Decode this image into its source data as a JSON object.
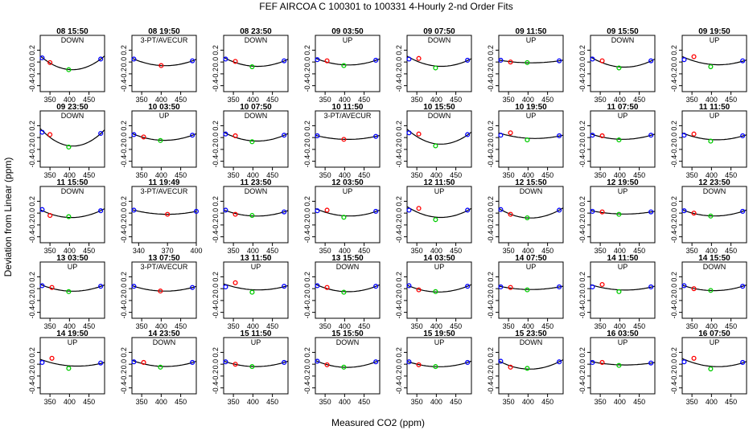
{
  "chart_data": {
    "type": "scatter",
    "title": "FEF   AIRCOA C   100301 to 100331   4-Hourly 2-nd Order Fits",
    "xlabel": "Measured CO2 (ppm)",
    "ylabel": "Deviation from Linear (ppm)",
    "grid_rows": 5,
    "grid_cols": 8,
    "ylim": [
      -0.5,
      0.45
    ],
    "yticks": [
      -0.4,
      -0.2,
      0.0,
      0.2
    ],
    "ytick_labels": [
      "-0.4",
      "-0.2",
      "0.0",
      "0.2"
    ],
    "default_xlim": [
      325,
      490
    ],
    "default_xticks": [
      350,
      400,
      450
    ],
    "default_xtick_labels": [
      "350",
      "400",
      "450"
    ],
    "point_colors": [
      "#0000ff",
      "#ff0000",
      "#00cc00",
      "#0000ff"
    ],
    "line_color": "#000000",
    "panels": [
      {
        "title": "08 15:50",
        "mode": "DOWN",
        "points": [
          {
            "x": 330,
            "y": 0.07
          },
          {
            "x": 350,
            "y": -0.01
          },
          {
            "x": 398,
            "y": -0.13
          },
          {
            "x": 480,
            "y": 0.05
          }
        ],
        "fit": [
          0.2,
          0.0,
          5e-05
        ]
      },
      {
        "title": "08 19:50",
        "mode": "3-PT/AVECUR",
        "points": [
          {
            "x": 330,
            "y": 0.05
          },
          {
            "x": 400,
            "y": -0.06
          },
          {
            "x": 480,
            "y": 0.02
          }
        ],
        "fit": [
          0.2,
          0.0,
          5e-05
        ]
      },
      {
        "title": "08 23:50",
        "mode": "DOWN",
        "points": [
          {
            "x": 330,
            "y": 0.05
          },
          {
            "x": 355,
            "y": 0.01
          },
          {
            "x": 398,
            "y": -0.08
          },
          {
            "x": 480,
            "y": 0.02
          }
        ],
        "fit": [
          0.2,
          0.0,
          5e-05
        ]
      },
      {
        "title": "09 03:50",
        "mode": "UP",
        "points": [
          {
            "x": 330,
            "y": 0.04
          },
          {
            "x": 355,
            "y": 0.02
          },
          {
            "x": 398,
            "y": -0.06
          },
          {
            "x": 480,
            "y": 0.03
          }
        ],
        "fit": [
          0.2,
          0.0,
          5e-05
        ]
      },
      {
        "title": "09 07:50",
        "mode": "DOWN",
        "points": [
          {
            "x": 330,
            "y": 0.05
          },
          {
            "x": 355,
            "y": 0.06
          },
          {
            "x": 398,
            "y": -0.1
          },
          {
            "x": 480,
            "y": 0.03
          }
        ],
        "fit": [
          0.2,
          0.0,
          5e-05
        ]
      },
      {
        "title": "09 11:50",
        "mode": "UP",
        "points": [
          {
            "x": 330,
            "y": 0.03
          },
          {
            "x": 355,
            "y": 0.0
          },
          {
            "x": 398,
            "y": -0.01
          },
          {
            "x": 480,
            "y": 0.02
          }
        ],
        "fit": [
          0.2,
          0.0,
          5e-05
        ]
      },
      {
        "title": "09 15:50",
        "mode": "DOWN",
        "points": [
          {
            "x": 330,
            "y": 0.05
          },
          {
            "x": 355,
            "y": 0.02
          },
          {
            "x": 398,
            "y": -0.1
          },
          {
            "x": 480,
            "y": 0.02
          }
        ],
        "fit": [
          0.2,
          0.0,
          5e-05
        ]
      },
      {
        "title": "09 19:50",
        "mode": "UP",
        "points": [
          {
            "x": 330,
            "y": 0.04
          },
          {
            "x": 355,
            "y": 0.09
          },
          {
            "x": 398,
            "y": -0.08
          },
          {
            "x": 480,
            "y": 0.02
          }
        ],
        "fit": [
          0.2,
          0.0,
          5e-05
        ]
      },
      {
        "title": "09 23:50",
        "mode": "DOWN",
        "points": [
          {
            "x": 330,
            "y": 0.09
          },
          {
            "x": 350,
            "y": 0.05
          },
          {
            "x": 398,
            "y": -0.16
          },
          {
            "x": 480,
            "y": 0.07
          }
        ],
        "fit": [
          0.2,
          0.0,
          5e-05
        ]
      },
      {
        "title": "10 03:50",
        "mode": "UP",
        "points": [
          {
            "x": 330,
            "y": 0.05
          },
          {
            "x": 355,
            "y": 0.01
          },
          {
            "x": 398,
            "y": -0.05
          },
          {
            "x": 480,
            "y": 0.04
          }
        ],
        "fit": [
          0.2,
          0.0,
          5e-05
        ]
      },
      {
        "title": "10 07:50",
        "mode": "DOWN",
        "points": [
          {
            "x": 330,
            "y": 0.06
          },
          {
            "x": 355,
            "y": 0.03
          },
          {
            "x": 398,
            "y": -0.07
          },
          {
            "x": 480,
            "y": 0.04
          }
        ],
        "fit": [
          0.2,
          0.0,
          5e-05
        ]
      },
      {
        "title": "10 11:50",
        "mode": "3-PT/AVECUR",
        "points": [
          {
            "x": 330,
            "y": 0.03
          },
          {
            "x": 398,
            "y": -0.03
          },
          {
            "x": 480,
            "y": 0.02
          }
        ],
        "fit": [
          0.2,
          0.0,
          5e-05
        ]
      },
      {
        "title": "10 15:50",
        "mode": "DOWN",
        "points": [
          {
            "x": 330,
            "y": 0.08
          },
          {
            "x": 355,
            "y": 0.06
          },
          {
            "x": 398,
            "y": -0.14
          },
          {
            "x": 480,
            "y": 0.05
          }
        ],
        "fit": [
          0.2,
          0.0,
          5e-05
        ]
      },
      {
        "title": "10 19:50",
        "mode": "UP",
        "points": [
          {
            "x": 330,
            "y": 0.04
          },
          {
            "x": 355,
            "y": 0.08
          },
          {
            "x": 398,
            "y": -0.04
          },
          {
            "x": 480,
            "y": 0.03
          }
        ],
        "fit": [
          0.2,
          0.0,
          5e-05
        ]
      },
      {
        "title": "11 07:50",
        "mode": "UP",
        "points": [
          {
            "x": 330,
            "y": 0.04
          },
          {
            "x": 355,
            "y": 0.03
          },
          {
            "x": 398,
            "y": -0.04
          },
          {
            "x": 480,
            "y": 0.04
          }
        ],
        "fit": [
          0.2,
          0.0,
          5e-05
        ]
      },
      {
        "title": "11 11:50",
        "mode": "UP",
        "points": [
          {
            "x": 330,
            "y": 0.04
          },
          {
            "x": 355,
            "y": 0.06
          },
          {
            "x": 398,
            "y": -0.06
          },
          {
            "x": 480,
            "y": 0.03
          }
        ],
        "fit": [
          0.2,
          0.0,
          5e-05
        ]
      },
      {
        "title": "11 15:50",
        "mode": "DOWN",
        "points": [
          {
            "x": 330,
            "y": 0.06
          },
          {
            "x": 350,
            "y": -0.04
          },
          {
            "x": 398,
            "y": -0.06
          },
          {
            "x": 480,
            "y": 0.04
          }
        ],
        "fit": [
          0.2,
          0.0,
          5e-05
        ]
      },
      {
        "title": "11 19:49",
        "mode": "3-PT/AVECUR",
        "xlim": [
          333,
          400
        ],
        "xticks": [
          340,
          370,
          400
        ],
        "xtick_labels": [
          "340",
          "370",
          "400"
        ],
        "points": [
          {
            "x": 335,
            "y": 0.05
          },
          {
            "x": 370,
            "y": -0.02
          },
          {
            "x": 400,
            "y": 0.03
          }
        ],
        "fit": [
          0.2,
          0.0,
          5e-05
        ]
      },
      {
        "title": "11 23:50",
        "mode": "DOWN",
        "points": [
          {
            "x": 330,
            "y": 0.05
          },
          {
            "x": 355,
            "y": -0.02
          },
          {
            "x": 398,
            "y": -0.04
          },
          {
            "x": 480,
            "y": 0.02
          }
        ],
        "fit": [
          0.2,
          0.0,
          5e-05
        ]
      },
      {
        "title": "12 03:50",
        "mode": "UP",
        "points": [
          {
            "x": 330,
            "y": 0.04
          },
          {
            "x": 355,
            "y": 0.05
          },
          {
            "x": 398,
            "y": -0.07
          },
          {
            "x": 480,
            "y": 0.03
          }
        ],
        "fit": [
          0.2,
          0.0,
          5e-05
        ]
      },
      {
        "title": "12 11:50",
        "mode": "UP",
        "points": [
          {
            "x": 330,
            "y": 0.05
          },
          {
            "x": 355,
            "y": 0.08
          },
          {
            "x": 398,
            "y": -0.11
          },
          {
            "x": 480,
            "y": 0.05
          }
        ],
        "fit": [
          0.2,
          0.0,
          5e-05
        ]
      },
      {
        "title": "12 15:50",
        "mode": "DOWN",
        "points": [
          {
            "x": 330,
            "y": 0.06
          },
          {
            "x": 355,
            "y": -0.02
          },
          {
            "x": 398,
            "y": -0.08
          },
          {
            "x": 480,
            "y": 0.05
          }
        ],
        "fit": [
          0.2,
          0.0,
          5e-05
        ]
      },
      {
        "title": "12 19:50",
        "mode": "UP",
        "points": [
          {
            "x": 330,
            "y": 0.03
          },
          {
            "x": 355,
            "y": 0.02
          },
          {
            "x": 398,
            "y": -0.02
          },
          {
            "x": 480,
            "y": 0.02
          }
        ],
        "fit": [
          0.2,
          0.0,
          5e-05
        ]
      },
      {
        "title": "12 23:50",
        "mode": "DOWN",
        "points": [
          {
            "x": 330,
            "y": 0.04
          },
          {
            "x": 355,
            "y": 0.0
          },
          {
            "x": 398,
            "y": -0.05
          },
          {
            "x": 480,
            "y": 0.03
          }
        ],
        "fit": [
          0.2,
          0.0,
          5e-05
        ]
      },
      {
        "title": "13 03:50",
        "mode": "UP",
        "points": [
          {
            "x": 330,
            "y": 0.05
          },
          {
            "x": 355,
            "y": 0.02
          },
          {
            "x": 398,
            "y": -0.05
          },
          {
            "x": 480,
            "y": 0.04
          }
        ],
        "fit": [
          0.2,
          0.0,
          5e-05
        ]
      },
      {
        "title": "13 07:50",
        "mode": "3-PT/AVECUR",
        "points": [
          {
            "x": 330,
            "y": 0.04
          },
          {
            "x": 398,
            "y": -0.04
          },
          {
            "x": 480,
            "y": 0.02
          }
        ],
        "fit": [
          0.2,
          0.0,
          5e-05
        ]
      },
      {
        "title": "13 11:50",
        "mode": "UP",
        "points": [
          {
            "x": 330,
            "y": 0.03
          },
          {
            "x": 355,
            "y": 0.1
          },
          {
            "x": 398,
            "y": -0.06
          },
          {
            "x": 480,
            "y": 0.04
          }
        ],
        "fit": [
          0.2,
          0.0,
          5e-05
        ]
      },
      {
        "title": "13 15:50",
        "mode": "DOWN",
        "points": [
          {
            "x": 330,
            "y": 0.05
          },
          {
            "x": 355,
            "y": 0.02
          },
          {
            "x": 398,
            "y": -0.06
          },
          {
            "x": 480,
            "y": 0.04
          }
        ],
        "fit": [
          0.2,
          0.0,
          5e-05
        ]
      },
      {
        "title": "14 03:50",
        "mode": "UP",
        "points": [
          {
            "x": 330,
            "y": 0.05
          },
          {
            "x": 355,
            "y": -0.02
          },
          {
            "x": 398,
            "y": -0.05
          },
          {
            "x": 480,
            "y": 0.04
          }
        ],
        "fit": [
          0.2,
          0.0,
          5e-05
        ]
      },
      {
        "title": "14 07:50",
        "mode": "UP",
        "points": [
          {
            "x": 330,
            "y": 0.03
          },
          {
            "x": 355,
            "y": 0.02
          },
          {
            "x": 398,
            "y": -0.02
          },
          {
            "x": 480,
            "y": 0.03
          }
        ],
        "fit": [
          0.2,
          0.0,
          5e-05
        ]
      },
      {
        "title": "14 11:50",
        "mode": "UP",
        "points": [
          {
            "x": 330,
            "y": 0.03
          },
          {
            "x": 355,
            "y": 0.07
          },
          {
            "x": 398,
            "y": -0.05
          },
          {
            "x": 480,
            "y": 0.03
          }
        ],
        "fit": [
          0.2,
          0.0,
          5e-05
        ]
      },
      {
        "title": "14 15:50",
        "mode": "DOWN",
        "points": [
          {
            "x": 330,
            "y": 0.05
          },
          {
            "x": 355,
            "y": 0.0
          },
          {
            "x": 398,
            "y": -0.03
          },
          {
            "x": 480,
            "y": 0.04
          }
        ],
        "fit": [
          0.2,
          0.0,
          5e-05
        ]
      },
      {
        "title": "14 19:50",
        "mode": "UP",
        "points": [
          {
            "x": 330,
            "y": 0.03
          },
          {
            "x": 355,
            "y": 0.1
          },
          {
            "x": 398,
            "y": -0.07
          },
          {
            "x": 480,
            "y": 0.02
          }
        ],
        "fit": [
          0.2,
          0.0,
          5e-05
        ]
      },
      {
        "title": "14 23:50",
        "mode": "DOWN",
        "points": [
          {
            "x": 330,
            "y": 0.04
          },
          {
            "x": 355,
            "y": 0.03
          },
          {
            "x": 398,
            "y": -0.05
          },
          {
            "x": 480,
            "y": 0.03
          }
        ],
        "fit": [
          0.2,
          0.0,
          5e-05
        ]
      },
      {
        "title": "15 11:50",
        "mode": "UP",
        "points": [
          {
            "x": 330,
            "y": 0.04
          },
          {
            "x": 355,
            "y": 0.0
          },
          {
            "x": 398,
            "y": -0.04
          },
          {
            "x": 480,
            "y": 0.03
          }
        ],
        "fit": [
          0.2,
          0.0,
          5e-05
        ]
      },
      {
        "title": "15 15:50",
        "mode": "DOWN",
        "points": [
          {
            "x": 330,
            "y": 0.05
          },
          {
            "x": 355,
            "y": -0.01
          },
          {
            "x": 398,
            "y": -0.05
          },
          {
            "x": 480,
            "y": 0.04
          }
        ],
        "fit": [
          0.2,
          0.0,
          5e-05
        ]
      },
      {
        "title": "15 19:50",
        "mode": "UP",
        "points": [
          {
            "x": 330,
            "y": 0.04
          },
          {
            "x": 355,
            "y": -0.01
          },
          {
            "x": 398,
            "y": -0.04
          },
          {
            "x": 480,
            "y": 0.03
          }
        ],
        "fit": [
          0.2,
          0.0,
          5e-05
        ]
      },
      {
        "title": "15 23:50",
        "mode": "DOWN",
        "points": [
          {
            "x": 330,
            "y": 0.05
          },
          {
            "x": 355,
            "y": -0.05
          },
          {
            "x": 398,
            "y": -0.07
          },
          {
            "x": 480,
            "y": 0.04
          }
        ],
        "fit": [
          0.2,
          0.0,
          5e-05
        ]
      },
      {
        "title": "16 03:50",
        "mode": "UP",
        "points": [
          {
            "x": 330,
            "y": 0.03
          },
          {
            "x": 355,
            "y": 0.03
          },
          {
            "x": 398,
            "y": -0.02
          },
          {
            "x": 480,
            "y": 0.02
          }
        ],
        "fit": [
          0.2,
          0.0,
          5e-05
        ]
      },
      {
        "title": "16 07:50",
        "mode": "UP",
        "points": [
          {
            "x": 330,
            "y": 0.04
          },
          {
            "x": 355,
            "y": 0.1
          },
          {
            "x": 398,
            "y": -0.08
          },
          {
            "x": 480,
            "y": 0.03
          }
        ],
        "fit": [
          0.2,
          0.0,
          5e-05
        ]
      }
    ]
  }
}
